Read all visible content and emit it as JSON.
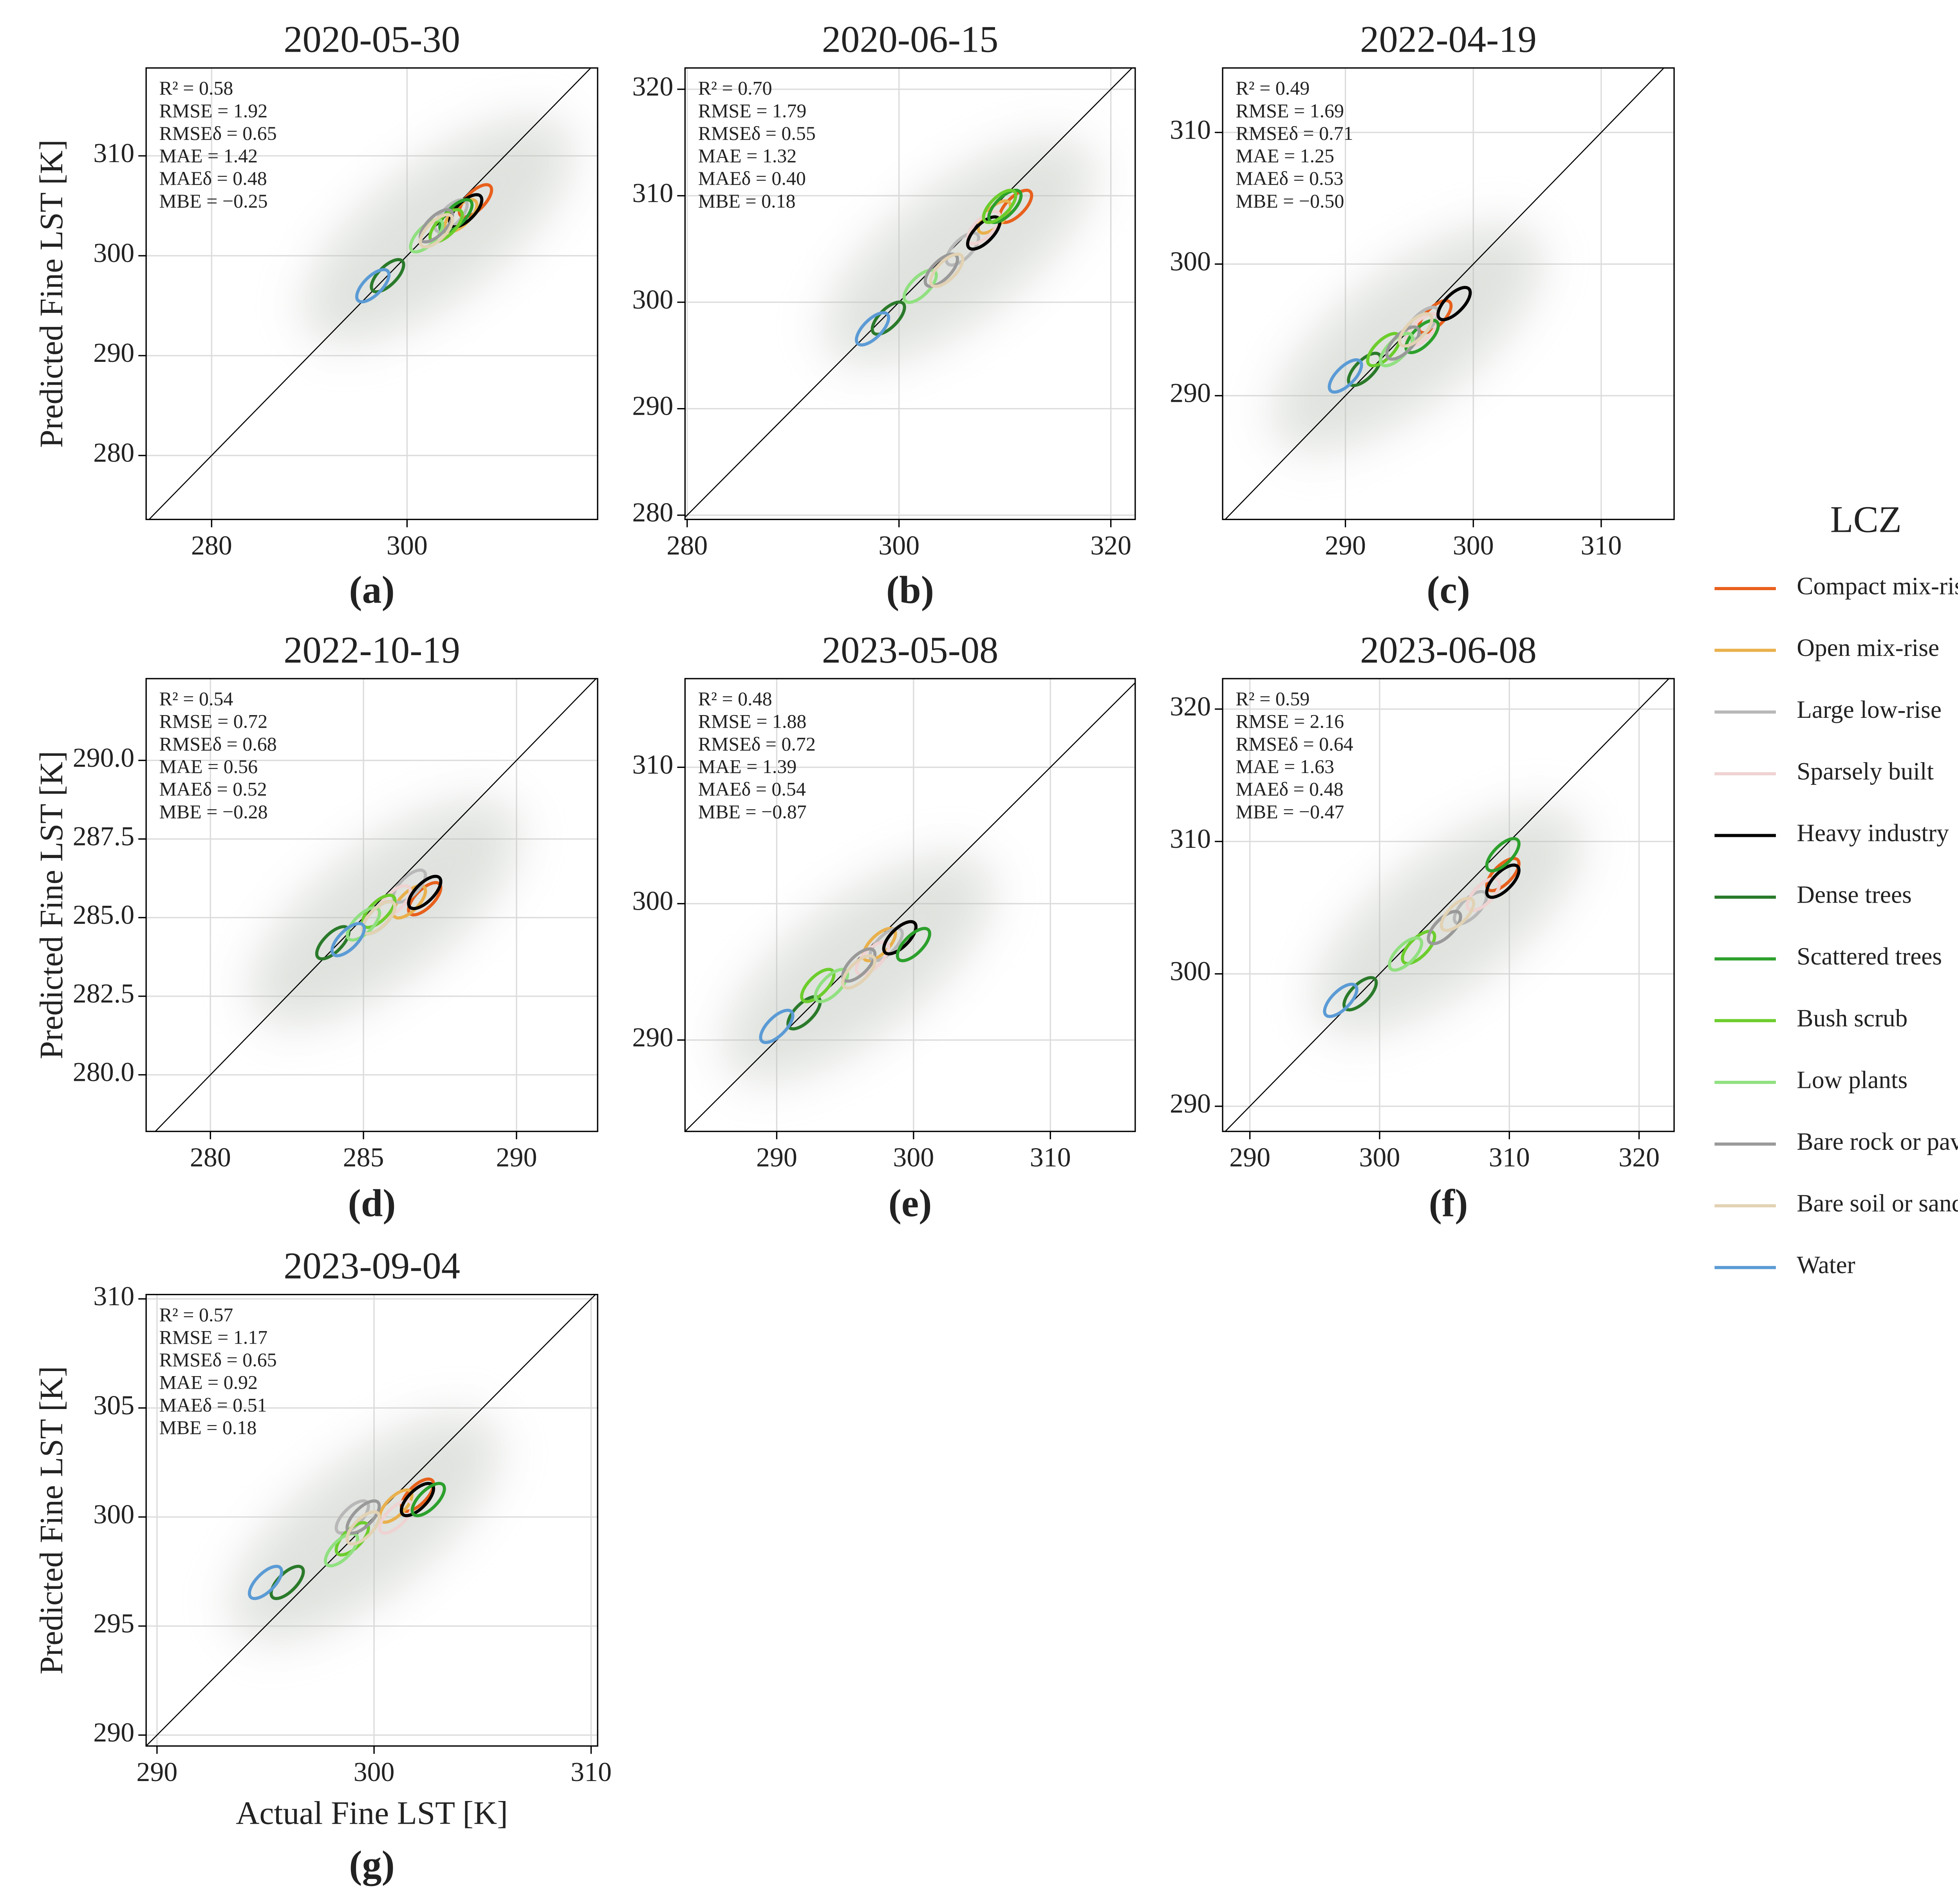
{
  "legend": {
    "title": "LCZ",
    "series": [
      {
        "name": "Compact mix-rise",
        "color": "#e8601c"
      },
      {
        "name": "Open mix-rise",
        "color": "#e9b04c"
      },
      {
        "name": "Large low-rise",
        "color": "#b8b8b8"
      },
      {
        "name": "Sparsely built",
        "color": "#efd2d2"
      },
      {
        "name": "Heavy industry",
        "color": "#000000"
      },
      {
        "name": "Dense trees",
        "color": "#2a7a2a"
      },
      {
        "name": "Scattered trees",
        "color": "#2ca02c"
      },
      {
        "name": "Bush scrub",
        "color": "#6ccd2c"
      },
      {
        "name": "Low plants",
        "color": "#90e080"
      },
      {
        "name": "Bare rock or paved",
        "color": "#999999"
      },
      {
        "name": "Bare soil or sand",
        "color": "#e2d2b4"
      },
      {
        "name": "Water",
        "color": "#5b9bd5"
      }
    ]
  },
  "chart_data": [
    {
      "type": "contour",
      "title": "2020-05-30",
      "panel_label": "(a)",
      "ylabel": "Predicted Fine LST [K]",
      "annotations": [
        "R² = 0.58",
        "RMSE = 1.92",
        "RMSEδ = 0.65",
        "MAE = 1.42",
        "MAEδ = 0.48",
        "MBE = −0.25"
      ],
      "xlim": [
        273.3,
        319.5
      ],
      "ylim": [
        273.6,
        318.8
      ],
      "xticks": [
        280,
        300
      ],
      "yticks": [
        280,
        290,
        300,
        310
      ],
      "grid": true,
      "x": [
        307,
        305.5,
        304.5,
        304,
        306,
        298,
        305,
        304,
        302,
        303,
        303,
        296.5
      ],
      "values": [
        305.5,
        304,
        304,
        303,
        304.5,
        298,
        304,
        303,
        302,
        303,
        302.5,
        297
      ]
    },
    {
      "type": "contour",
      "title": "2020-06-15",
      "panel_label": "(b)",
      "annotations": [
        "R² = 0.70",
        "RMSE = 1.79",
        "RMSEδ = 0.55",
        "MAE = 1.32",
        "MAEδ = 0.40",
        "MBE = 0.18"
      ],
      "xlim": [
        279.8,
        322.3
      ],
      "ylim": [
        279.6,
        322
      ],
      "xticks": [
        280,
        300,
        320
      ],
      "yticks": [
        280,
        290,
        300,
        310,
        320
      ],
      "grid": true,
      "x": [
        311,
        309,
        306,
        308,
        308,
        299,
        310,
        309.5,
        302,
        304,
        304.5,
        297.5
      ],
      "values": [
        309,
        308,
        305,
        307,
        306.5,
        298.5,
        309,
        309,
        301.5,
        303,
        303,
        297.5
      ]
    },
    {
      "type": "contour",
      "title": "2022-04-19",
      "panel_label": "(c)",
      "annotations": [
        "R² = 0.49",
        "RMSE = 1.69",
        "RMSEδ = 0.71",
        "MAE = 1.25",
        "MAEδ = 0.53",
        "MBE = −0.50"
      ],
      "xlim": [
        280.4,
        315.7
      ],
      "ylim": [
        280.6,
        314.9
      ],
      "xticks": [
        290,
        300,
        310
      ],
      "yticks": [
        290,
        300,
        310
      ],
      "grid": true,
      "x": [
        297,
        296,
        296,
        296,
        298.5,
        291.5,
        296,
        293,
        294,
        294.5,
        295.5,
        290
      ],
      "values": [
        296,
        295,
        295.5,
        295,
        297,
        292,
        294.5,
        293.5,
        293.5,
        294,
        295,
        291.5
      ]
    },
    {
      "type": "contour",
      "title": "2022-10-19",
      "panel_label": "(d)",
      "ylabel": "Predicted Fine LST [K]",
      "annotations": [
        "R² = 0.54",
        "RMSE = 0.72",
        "RMSEδ = 0.68",
        "MAE = 0.56",
        "MAEδ = 0.52",
        "MBE = −0.28"
      ],
      "xlim": [
        277.9,
        292.65
      ],
      "ylim": [
        278.2,
        292.6
      ],
      "xticks": [
        280,
        285,
        290
      ],
      "yticks": [
        {
          "value": 280,
          "label": "280.0"
        },
        282.5,
        {
          "value": 285,
          "label": "285.0"
        },
        287.5,
        {
          "value": 290,
          "label": "290.0"
        }
      ],
      "grid": true,
      "x": [
        287,
        286.5,
        286.5,
        286,
        287,
        284,
        285.5,
        285.5,
        285,
        285.5,
        285.5,
        284.5
      ],
      "values": [
        285.6,
        285.5,
        286,
        285.5,
        285.8,
        284.2,
        285,
        285.2,
        284.8,
        285,
        285,
        284.3
      ]
    },
    {
      "type": "contour",
      "title": "2023-05-08",
      "panel_label": "(e)",
      "annotations": [
        "R² = 0.48",
        "RMSE = 1.88",
        "RMSEδ = 0.72",
        "MAE = 1.39",
        "MAEδ = 0.54",
        "MBE = −0.87"
      ],
      "xlim": [
        283.3,
        316.2
      ],
      "ylim": [
        283.3,
        316.5
      ],
      "xticks": [
        290,
        300,
        310
      ],
      "yticks": [
        290,
        300,
        310
      ],
      "grid": true,
      "x": [
        299,
        297.5,
        298,
        297,
        299,
        292,
        300,
        293,
        294,
        296,
        296,
        290
      ],
      "values": [
        297.5,
        297,
        297,
        296,
        297.5,
        292,
        297,
        294,
        294,
        295.5,
        295,
        291
      ]
    },
    {
      "type": "contour",
      "title": "2023-06-08",
      "panel_label": "(f)",
      "annotations": [
        "R² = 0.59",
        "RMSE = 2.16",
        "RMSEδ = 0.64",
        "MAE = 1.63",
        "MAEδ = 0.48",
        "MBE = −0.47"
      ],
      "xlim": [
        287.9,
        322.7
      ],
      "ylim": [
        288.1,
        322.3
      ],
      "xticks": [
        290,
        300,
        310,
        320
      ],
      "yticks": [
        290,
        300,
        310,
        320
      ],
      "grid": true,
      "x": [
        309.5,
        308,
        307,
        308,
        309.5,
        298.5,
        309.5,
        303,
        302,
        305,
        306,
        297
      ],
      "values": [
        307.5,
        306,
        305,
        306,
        307,
        298.5,
        309,
        302,
        301.5,
        303.5,
        304.5,
        298
      ]
    },
    {
      "type": "contour",
      "title": "2023-09-04",
      "panel_label": "(g)",
      "ylabel": "Predicted Fine LST [K]",
      "xlabel": "Actual Fine LST [K]",
      "annotations": [
        "R² = 0.57",
        "RMSE = 1.17",
        "RMSEδ = 0.65",
        "MAE = 0.92",
        "MAEδ = 0.51",
        "MBE = 0.18"
      ],
      "xlim": [
        289.5,
        310.3
      ],
      "ylim": [
        289.5,
        310.2
      ],
      "xticks": [
        290,
        300,
        310
      ],
      "yticks": [
        290,
        295,
        300,
        305,
        310
      ],
      "grid": true,
      "x": [
        302,
        301,
        299,
        301,
        302,
        296,
        302.5,
        299,
        298.5,
        299.5,
        299.5,
        295
      ],
      "values": [
        301,
        300.5,
        300,
        300,
        300.8,
        297,
        300.8,
        299,
        298.5,
        300,
        299.5,
        297
      ]
    }
  ]
}
